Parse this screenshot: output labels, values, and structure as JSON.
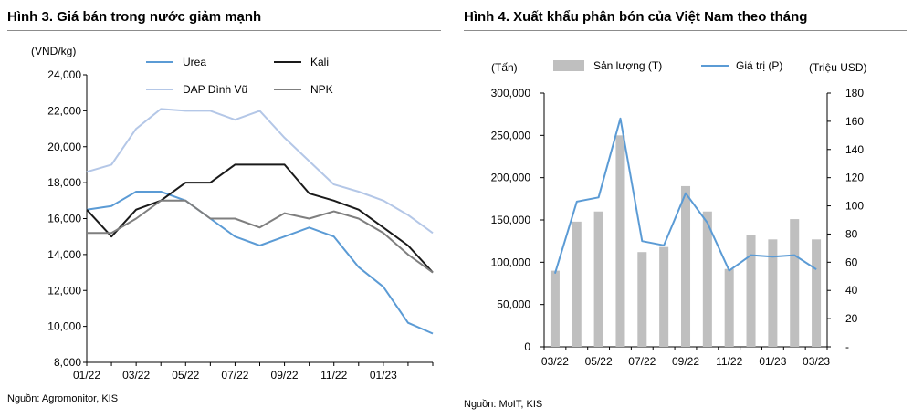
{
  "left": {
    "title": "Hình 3. Giá bán trong nước giảm mạnh",
    "source": "Nguồn: Agromonitor, KIS"
  },
  "right": {
    "title": "Hình 4. Xuất khẩu phân bón của Việt Nam theo tháng",
    "source": "Nguồn: MoIT, KIS"
  },
  "chart_data": [
    {
      "type": "line",
      "ylabel": "(VND/kg)",
      "ylim": [
        8000,
        24000
      ],
      "yticks": [
        "8,000",
        "10,000",
        "12,000",
        "14,000",
        "16,000",
        "18,000",
        "20,000",
        "22,000",
        "24,000"
      ],
      "x": [
        "01/22",
        "02/22",
        "03/22",
        "04/22",
        "05/22",
        "06/22",
        "07/22",
        "08/22",
        "09/22",
        "10/22",
        "11/22",
        "12/22",
        "01/23",
        "02/23",
        "03/23"
      ],
      "xtick_labels": [
        "01/22",
        "03/22",
        "05/22",
        "07/22",
        "09/22",
        "11/22",
        "01/23"
      ],
      "legend_position": "top",
      "grid": false,
      "series": [
        {
          "name": "Urea",
          "color": "#5b9bd5",
          "values": [
            16500,
            16700,
            17500,
            17500,
            17000,
            16000,
            15000,
            14500,
            15000,
            15500,
            15000,
            13300,
            12200,
            10200,
            9600
          ]
        },
        {
          "name": "Kali",
          "color": "#1a1a1a",
          "values": [
            16500,
            15000,
            16500,
            17000,
            18000,
            18000,
            19000,
            19000,
            19000,
            17400,
            17000,
            16500,
            15500,
            14500,
            13000
          ]
        },
        {
          "name": "DAP Đình Vũ",
          "color": "#b4c7e7",
          "values": [
            18600,
            19000,
            21000,
            22100,
            22000,
            22000,
            21500,
            22000,
            20500,
            19200,
            17900,
            17500,
            17000,
            16200,
            15200
          ]
        },
        {
          "name": "NPK",
          "color": "#7f7f7f",
          "values": [
            15200,
            15200,
            16000,
            17000,
            17000,
            16000,
            16000,
            15500,
            16300,
            16000,
            16400,
            16000,
            15200,
            14000,
            13000
          ]
        }
      ]
    },
    {
      "type": "bar",
      "x": [
        "03/22",
        "04/22",
        "05/22",
        "06/22",
        "07/22",
        "08/22",
        "09/22",
        "10/22",
        "11/22",
        "12/22",
        "01/23",
        "02/23",
        "03/23"
      ],
      "xtick_labels": [
        "03/22",
        "05/22",
        "07/22",
        "09/22",
        "11/22",
        "01/23",
        "03/23"
      ],
      "y1label": "(Tấn)",
      "y1lim": [
        0,
        300000
      ],
      "y1ticks": [
        "0",
        "50,000",
        "100,000",
        "150,000",
        "200,000",
        "250,000",
        "300,000"
      ],
      "y2label": "(Triệu USD)",
      "y2lim": [
        0,
        180
      ],
      "y2ticks": [
        "-",
        "20",
        "40",
        "60",
        "80",
        "100",
        "120",
        "140",
        "160",
        "180"
      ],
      "legend_position": "top",
      "grid": false,
      "series": [
        {
          "name": "Sản lượng (T)",
          "kind": "bar",
          "axis": "left",
          "color": "#bfbfbf",
          "values": [
            90000,
            148000,
            160000,
            250000,
            112000,
            118000,
            190000,
            160000,
            92000,
            132000,
            127000,
            151000,
            127000
          ]
        },
        {
          "name": "Giá trị (P)",
          "kind": "line",
          "axis": "right",
          "color": "#5b9bd5",
          "values": [
            52,
            103,
            106,
            162,
            75,
            72,
            109,
            88,
            54,
            65,
            64,
            65,
            55
          ]
        }
      ]
    }
  ]
}
